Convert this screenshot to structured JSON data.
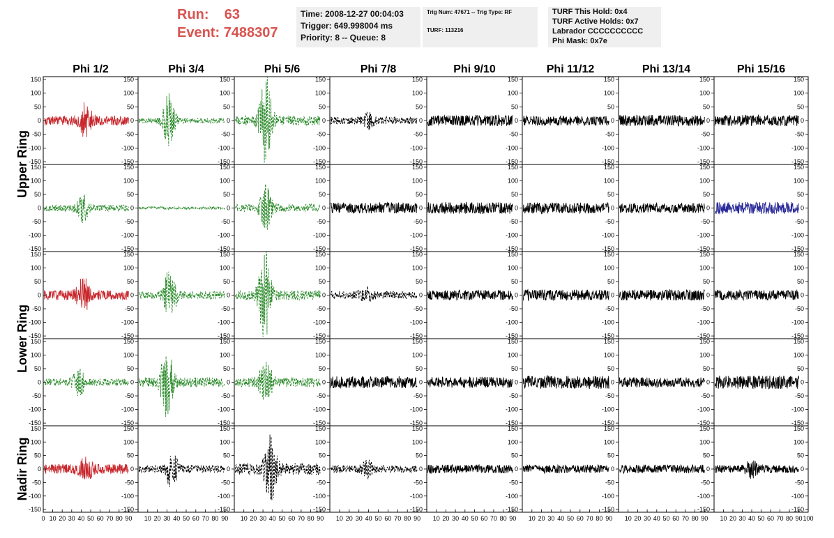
{
  "header": {
    "run_label": "Run:",
    "run_value": "63",
    "event_label": "Event:",
    "event_value": "7488307",
    "time_line": "Time: 2008-12-27 00:04:03",
    "trigger_line": "Trigger: 649.998004 ms",
    "priority_line": "Priority: 8 -- Queue: 8",
    "trig_line": "Trig Num: 47671 -- Trig Type: RF",
    "turf_line": "TURF: 113216",
    "turf_hold": "TURF This Hold: 0x4",
    "turf_active": "TURF Active Holds: 0x7",
    "labrador": "Labrador CCCCCCCCCC",
    "phi_mask": "Phi Mask: 0x7e"
  },
  "colors": {
    "red": "#c8282d",
    "green": "#2a8a2a",
    "black": "#000000",
    "blue": "#2a2a9a",
    "title": "#d9534f"
  },
  "chart_data": {
    "type": "line",
    "columns": [
      "Phi 1/2",
      "Phi 3/4",
      "Phi 5/6",
      "Phi 7/8",
      "Phi 9/10",
      "Phi 11/12",
      "Phi 13/14",
      "Phi 15/16"
    ],
    "ring_labels": [
      {
        "label": "Upper Ring",
        "rows": [
          0,
          1
        ]
      },
      {
        "label": "Lower Ring",
        "rows": [
          2,
          3
        ]
      },
      {
        "label": "Nadir Ring",
        "rows": [
          4
        ]
      }
    ],
    "xlim": [
      0,
      100
    ],
    "ylim": [
      -160,
      160
    ],
    "y_ticks": [
      -150,
      -100,
      -50,
      0,
      50,
      100,
      150
    ],
    "x_ticks": [
      0,
      10,
      20,
      30,
      40,
      50,
      60,
      70,
      80,
      90,
      100
    ],
    "grid": false,
    "legend": "none",
    "panels": [
      [
        {
          "color": "red",
          "style": "solid",
          "amp": 18,
          "burst_at": 45,
          "burst_amp": 55
        },
        {
          "color": "green",
          "style": "dash",
          "amp": 10,
          "burst_at": 32,
          "burst_amp": 95
        },
        {
          "color": "green",
          "style": "dash",
          "amp": 18,
          "burst_at": 33,
          "burst_amp": 160
        },
        {
          "color": "black",
          "style": "dash",
          "amp": 14,
          "burst_at": 40,
          "burst_amp": 20
        },
        {
          "color": "black",
          "style": "solid",
          "amp": 20,
          "burst_at": 50,
          "burst_amp": 0
        },
        {
          "color": "black",
          "style": "solid",
          "amp": 18,
          "burst_at": 50,
          "burst_amp": 0
        },
        {
          "color": "black",
          "style": "solid",
          "amp": 20,
          "burst_at": 50,
          "burst_amp": 0
        },
        {
          "color": "black",
          "style": "solid",
          "amp": 20,
          "burst_at": 50,
          "burst_amp": 0
        }
      ],
      [
        {
          "color": "green",
          "style": "dash",
          "amp": 12,
          "burst_at": 42,
          "burst_amp": 45
        },
        {
          "color": "green",
          "style": "dash",
          "amp": 5,
          "burst_at": 50,
          "burst_amp": 0
        },
        {
          "color": "green",
          "style": "dash",
          "amp": 14,
          "burst_at": 33,
          "burst_amp": 75
        },
        {
          "color": "black",
          "style": "solid",
          "amp": 20,
          "burst_at": 50,
          "burst_amp": 0
        },
        {
          "color": "black",
          "style": "solid",
          "amp": 22,
          "burst_at": 50,
          "burst_amp": 0
        },
        {
          "color": "black",
          "style": "solid",
          "amp": 20,
          "burst_at": 50,
          "burst_amp": 0
        },
        {
          "color": "black",
          "style": "solid",
          "amp": 18,
          "burst_at": 50,
          "burst_amp": 0
        },
        {
          "color": "blue",
          "style": "solid",
          "amp": 22,
          "burst_at": 50,
          "burst_amp": 0
        }
      ],
      [
        {
          "color": "red",
          "style": "solid",
          "amp": 18,
          "burst_at": 42,
          "burst_amp": 60
        },
        {
          "color": "green",
          "style": "dash",
          "amp": 14,
          "burst_at": 33,
          "burst_amp": 90
        },
        {
          "color": "green",
          "style": "dash",
          "amp": 18,
          "burst_at": 32,
          "burst_amp": 160
        },
        {
          "color": "black",
          "style": "dash",
          "amp": 14,
          "burst_at": 38,
          "burst_amp": 20
        },
        {
          "color": "black",
          "style": "solid",
          "amp": 18,
          "burst_at": 50,
          "burst_amp": 0
        },
        {
          "color": "black",
          "style": "solid",
          "amp": 20,
          "burst_at": 50,
          "burst_amp": 0
        },
        {
          "color": "black",
          "style": "solid",
          "amp": 20,
          "burst_at": 50,
          "burst_amp": 0
        },
        {
          "color": "black",
          "style": "solid",
          "amp": 18,
          "burst_at": 50,
          "burst_amp": 0
        }
      ],
      [
        {
          "color": "green",
          "style": "dash",
          "amp": 14,
          "burst_at": 38,
          "burst_amp": 45
        },
        {
          "color": "green",
          "style": "dash",
          "amp": 18,
          "burst_at": 30,
          "burst_amp": 130
        },
        {
          "color": "green",
          "style": "dash",
          "amp": 18,
          "burst_at": 33,
          "burst_amp": 85
        },
        {
          "color": "black",
          "style": "solid",
          "amp": 22,
          "burst_at": 50,
          "burst_amp": 0
        },
        {
          "color": "black",
          "style": "solid",
          "amp": 20,
          "burst_at": 50,
          "burst_amp": 0
        },
        {
          "color": "black",
          "style": "solid",
          "amp": 24,
          "burst_at": 50,
          "burst_amp": 0
        },
        {
          "color": "black",
          "style": "solid",
          "amp": 18,
          "burst_at": 50,
          "burst_amp": 0
        },
        {
          "color": "black",
          "style": "solid",
          "amp": 24,
          "burst_at": 50,
          "burst_amp": 0
        }
      ],
      [
        {
          "color": "red",
          "style": "solid",
          "amp": 18,
          "burst_at": 45,
          "burst_amp": 40
        },
        {
          "color": "black",
          "style": "dash",
          "amp": 14,
          "burst_at": 35,
          "burst_amp": 65
        },
        {
          "color": "black",
          "style": "dash",
          "amp": 22,
          "burst_at": 38,
          "burst_amp": 110
        },
        {
          "color": "black",
          "style": "dash",
          "amp": 14,
          "burst_at": 40,
          "burst_amp": 25
        },
        {
          "color": "black",
          "style": "solid",
          "amp": 16,
          "burst_at": 50,
          "burst_amp": 0
        },
        {
          "color": "black",
          "style": "solid",
          "amp": 16,
          "burst_at": 50,
          "burst_amp": 0
        },
        {
          "color": "black",
          "style": "solid",
          "amp": 16,
          "burst_at": 50,
          "burst_amp": 0
        },
        {
          "color": "black",
          "style": "solid",
          "amp": 14,
          "burst_at": 40,
          "burst_amp": 25
        }
      ]
    ]
  }
}
